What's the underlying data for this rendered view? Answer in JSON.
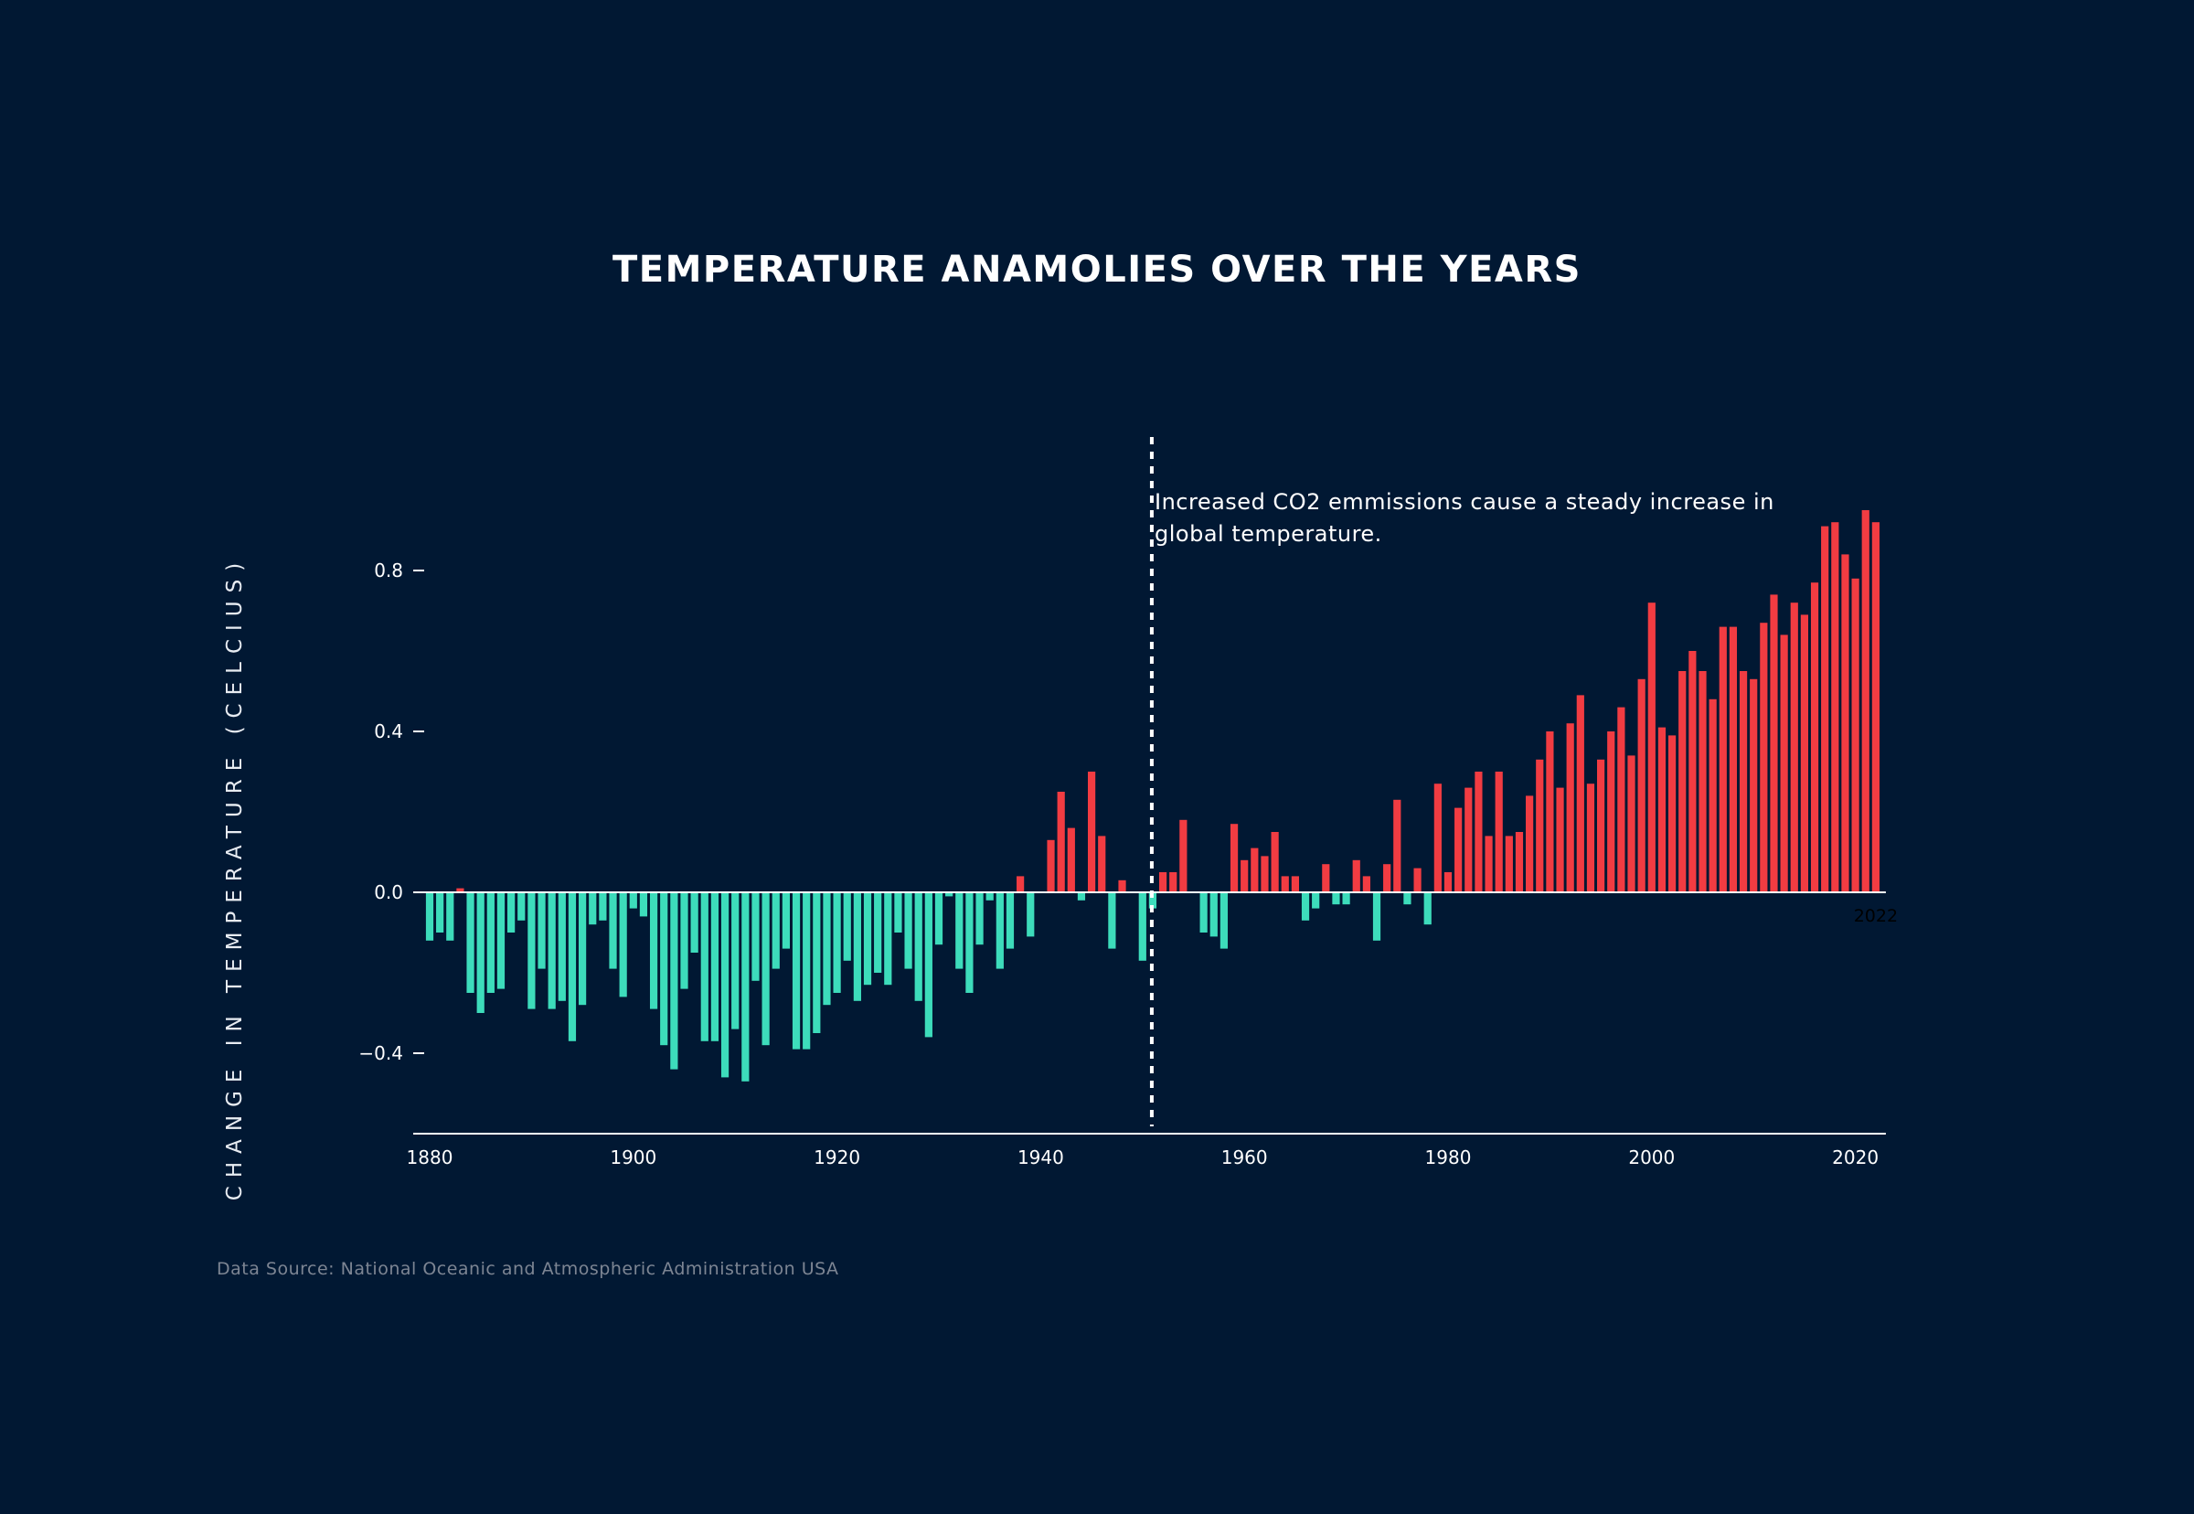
{
  "page": {
    "background": "#011833"
  },
  "chart_data": {
    "type": "bar",
    "title": "TEMPERATURE ANAMOLIES OVER THE YEARS",
    "ylabel": "CHANGE IN TEMPERATURE (CELCIUS)",
    "xlabel": "",
    "ylim": [
      -0.6,
      1.0
    ],
    "xlim": [
      1880,
      2022
    ],
    "yticks": [
      -0.4,
      0.0,
      0.4,
      0.8
    ],
    "ytick_labels": [
      "−0.4",
      "0.0",
      "0.4",
      "0.8"
    ],
    "xticks": [
      1880,
      1900,
      1920,
      1940,
      1960,
      1980,
      2000,
      2020
    ],
    "xtick_labels": [
      "1880",
      "1900",
      "1920",
      "1940",
      "1960",
      "1980",
      "2000",
      "2020"
    ],
    "end_year_label": "2022",
    "colors": {
      "positive": "#f23c42",
      "negative": "#3ddcbb",
      "axis": "#ffffff"
    },
    "marker": {
      "year": 1951,
      "style": "dashed"
    },
    "annotation": "Increased CO2 emmissions cause a steady increase in global temperature.",
    "source": "Data Source: National Oceanic and Atmospheric Administration USA",
    "x": [
      1880,
      1881,
      1882,
      1883,
      1884,
      1885,
      1886,
      1887,
      1888,
      1889,
      1890,
      1891,
      1892,
      1893,
      1894,
      1895,
      1896,
      1897,
      1898,
      1899,
      1900,
      1901,
      1902,
      1903,
      1904,
      1905,
      1906,
      1907,
      1908,
      1909,
      1910,
      1911,
      1912,
      1913,
      1914,
      1915,
      1916,
      1917,
      1918,
      1919,
      1920,
      1921,
      1922,
      1923,
      1924,
      1925,
      1926,
      1927,
      1928,
      1929,
      1930,
      1931,
      1932,
      1933,
      1934,
      1935,
      1936,
      1937,
      1938,
      1939,
      1940,
      1941,
      1942,
      1943,
      1944,
      1945,
      1946,
      1947,
      1948,
      1949,
      1950,
      1951,
      1952,
      1953,
      1954,
      1955,
      1956,
      1957,
      1958,
      1959,
      1960,
      1961,
      1962,
      1963,
      1964,
      1965,
      1966,
      1967,
      1968,
      1969,
      1970,
      1971,
      1972,
      1973,
      1974,
      1975,
      1976,
      1977,
      1978,
      1979,
      1980,
      1981,
      1982,
      1983,
      1984,
      1985,
      1986,
      1987,
      1988,
      1989,
      1990,
      1991,
      1992,
      1993,
      1994,
      1995,
      1996,
      1997,
      1998,
      1999,
      2000,
      2001,
      2002,
      2003,
      2004,
      2005,
      2006,
      2007,
      2008,
      2009,
      2010,
      2011,
      2012,
      2013,
      2014,
      2015,
      2016,
      2017,
      2018,
      2019,
      2020,
      2021,
      2022
    ],
    "values": [
      -0.12,
      -0.1,
      -0.12,
      0.01,
      -0.25,
      -0.3,
      -0.25,
      -0.24,
      -0.1,
      -0.07,
      -0.29,
      -0.19,
      -0.29,
      -0.27,
      -0.37,
      -0.28,
      -0.08,
      -0.07,
      -0.19,
      -0.26,
      -0.04,
      -0.06,
      -0.29,
      -0.38,
      -0.44,
      -0.24,
      -0.15,
      -0.37,
      -0.37,
      -0.46,
      -0.34,
      -0.47,
      -0.22,
      -0.38,
      -0.19,
      -0.14,
      -0.39,
      -0.39,
      -0.35,
      -0.28,
      -0.25,
      -0.17,
      -0.27,
      -0.23,
      -0.2,
      -0.23,
      -0.1,
      -0.19,
      -0.27,
      -0.36,
      -0.13,
      -0.01,
      -0.19,
      -0.25,
      -0.13,
      -0.02,
      -0.19,
      -0.14,
      0.04,
      -0.11,
      0.0,
      0.13,
      0.25,
      0.16,
      -0.02,
      0.3,
      0.14,
      -0.14,
      0.03,
      0.0,
      -0.17,
      -0.04,
      0.05,
      0.05,
      0.18,
      0.0,
      -0.1,
      -0.11,
      -0.14,
      0.17,
      0.08,
      0.11,
      0.09,
      0.15,
      0.04,
      0.04,
      -0.07,
      -0.04,
      0.07,
      -0.03,
      -0.03,
      0.08,
      0.04,
      -0.12,
      0.07,
      0.23,
      -0.03,
      0.06,
      -0.08,
      0.27,
      0.05,
      0.21,
      0.26,
      0.3,
      0.14,
      0.3,
      0.14,
      0.15,
      0.24,
      0.33,
      0.4,
      0.26,
      0.42,
      0.49,
      0.27,
      0.33,
      0.4,
      0.46,
      0.34,
      0.53,
      0.72,
      0.41,
      0.39,
      0.55,
      0.6,
      0.55,
      0.48,
      0.66,
      0.66,
      0.55,
      0.53,
      0.67,
      0.74,
      0.64,
      0.72,
      0.69,
      0.77,
      0.91,
      0.92,
      0.84,
      0.78,
      0.95,
      0.92
    ]
  }
}
